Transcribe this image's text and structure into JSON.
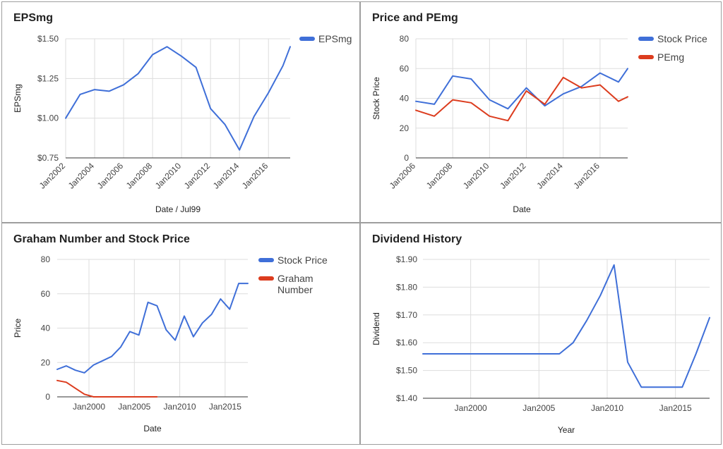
{
  "colors": {
    "blue": "#3f6fd8",
    "red": "#dc3c1e",
    "grid": "#dddddd",
    "axis": "#333333"
  },
  "chart_data": [
    {
      "id": "eps",
      "type": "line",
      "title": "EPSmg",
      "xlabel": "Date / Jul99",
      "ylabel": "EPSmg",
      "xlim": [
        2002,
        2017.5
      ],
      "ylim": [
        0.75,
        1.5
      ],
      "yticks": [
        0.75,
        1.0,
        1.25,
        1.5
      ],
      "ytick_labels": [
        "$0.75",
        "$1.00",
        "$1.25",
        "$1.50"
      ],
      "xticks": [
        2002,
        2004,
        2006,
        2008,
        2010,
        2012,
        2014,
        2016
      ],
      "xtick_labels": [
        "Jan2002",
        "Jan2004",
        "Jan2006",
        "Jan2008",
        "Jan2010",
        "Jan2012",
        "Jan2014",
        "Jan2016"
      ],
      "legend": "right",
      "series": [
        {
          "name": "EPSmg",
          "color": "#3f6fd8",
          "x": [
            2002,
            2003,
            2004,
            2005,
            2006,
            2007,
            2008,
            2009,
            2010,
            2011,
            2012,
            2013,
            2014,
            2015,
            2016,
            2017,
            2017.5
          ],
          "y": [
            1.0,
            1.15,
            1.18,
            1.17,
            1.21,
            1.28,
            1.4,
            1.45,
            1.39,
            1.32,
            1.06,
            0.96,
            0.8,
            1.01,
            1.16,
            1.33,
            1.45
          ]
        }
      ]
    },
    {
      "id": "price-pe",
      "type": "line",
      "title": "Price and PEmg",
      "xlabel": "Date",
      "ylabel": "Stock Price",
      "xlim": [
        2006,
        2017.5
      ],
      "ylim": [
        0,
        80
      ],
      "yticks": [
        0,
        20,
        40,
        60,
        80
      ],
      "ytick_labels": [
        "0",
        "20",
        "40",
        "60",
        "80"
      ],
      "xticks": [
        2006,
        2008,
        2010,
        2012,
        2014,
        2016
      ],
      "xtick_labels": [
        "Jan2006",
        "Jan2008",
        "Jan2010",
        "Jan2012",
        "Jan2014",
        "Jan2016"
      ],
      "legend": "right",
      "series": [
        {
          "name": "Stock Price",
          "color": "#3f6fd8",
          "x": [
            2006,
            2007,
            2008,
            2009,
            2010,
            2011,
            2012,
            2013,
            2014,
            2015,
            2016,
            2017,
            2017.5
          ],
          "y": [
            38,
            36,
            55,
            53,
            39,
            33,
            47,
            35,
            43,
            48,
            57,
            51,
            60
          ]
        },
        {
          "name": "PEmg",
          "color": "#dc3c1e",
          "x": [
            2006,
            2007,
            2008,
            2009,
            2010,
            2011,
            2012,
            2013,
            2014,
            2015,
            2016,
            2017,
            2017.5
          ],
          "y": [
            32,
            28,
            39,
            37,
            28,
            25,
            45,
            36,
            54,
            47,
            49,
            38,
            41
          ]
        }
      ]
    },
    {
      "id": "graham",
      "type": "line",
      "title": "Graham Number and Stock Price",
      "xlabel": "Date",
      "ylabel": "Price",
      "xlim": [
        1996.5,
        2017.5
      ],
      "ylim": [
        0,
        80
      ],
      "yticks": [
        0,
        20,
        40,
        60,
        80
      ],
      "ytick_labels": [
        "0",
        "20",
        "40",
        "60",
        "80"
      ],
      "xticks": [
        2000,
        2005,
        2010,
        2015
      ],
      "xtick_labels": [
        "Jan2000",
        "Jan2005",
        "Jan2010",
        "Jan2015"
      ],
      "legend": "right",
      "series": [
        {
          "name": "Stock Price",
          "color": "#3f6fd8",
          "x": [
            1996.5,
            1997.5,
            1998.5,
            1999.5,
            2000.5,
            2001.5,
            2002.5,
            2003.5,
            2004.5,
            2005.5,
            2006.5,
            2007.5,
            2008.5,
            2009.5,
            2010.5,
            2011.5,
            2012.5,
            2013.5,
            2014.5,
            2015.5,
            2016.5,
            2017.5
          ],
          "y": [
            16,
            18,
            15.5,
            14,
            18.5,
            21,
            23.5,
            29,
            38,
            36,
            55,
            53,
            39,
            33,
            47,
            35,
            43,
            48,
            57,
            51,
            66,
            66
          ]
        },
        {
          "name": "Graham Number",
          "color": "#dc3c1e",
          "x": [
            1996.5,
            1997.5,
            1998.5,
            1999.5,
            2000.5,
            2001.5,
            2002.5,
            2003.5,
            2004.5,
            2005.5,
            2006.5,
            2007.5
          ],
          "y": [
            9.5,
            8.5,
            5,
            1.5,
            0,
            0,
            0,
            0,
            0,
            0,
            0,
            0
          ]
        }
      ]
    },
    {
      "id": "dividend",
      "type": "line",
      "title": "Dividend History",
      "xlabel": "Year",
      "ylabel": "Dividend",
      "xlim": [
        1996.5,
        2017.5
      ],
      "ylim": [
        1.4,
        1.9
      ],
      "yticks": [
        1.4,
        1.5,
        1.6,
        1.7,
        1.8,
        1.9
      ],
      "ytick_labels": [
        "$1.40",
        "$1.50",
        "$1.60",
        "$1.70",
        "$1.80",
        "$1.90"
      ],
      "xticks": [
        2000,
        2005,
        2010,
        2015
      ],
      "xtick_labels": [
        "Jan2000",
        "Jan2005",
        "Jan2010",
        "Jan2015"
      ],
      "legend": "none",
      "series": [
        {
          "name": "",
          "color": "#3f6fd8",
          "x": [
            1996.5,
            1997.5,
            1998.5,
            1999.5,
            2000.5,
            2001.5,
            2002.5,
            2003.5,
            2004.5,
            2005.5,
            2006.5,
            2007.5,
            2008.5,
            2009.5,
            2010.5,
            2011.5,
            2012.5,
            2013.5,
            2014.5,
            2015.5,
            2016.5,
            2017.5
          ],
          "y": [
            1.56,
            1.56,
            1.56,
            1.56,
            1.56,
            1.56,
            1.56,
            1.56,
            1.56,
            1.56,
            1.56,
            1.6,
            1.68,
            1.77,
            1.88,
            1.53,
            1.44,
            1.44,
            1.44,
            1.44,
            1.56,
            1.69
          ]
        }
      ]
    }
  ]
}
